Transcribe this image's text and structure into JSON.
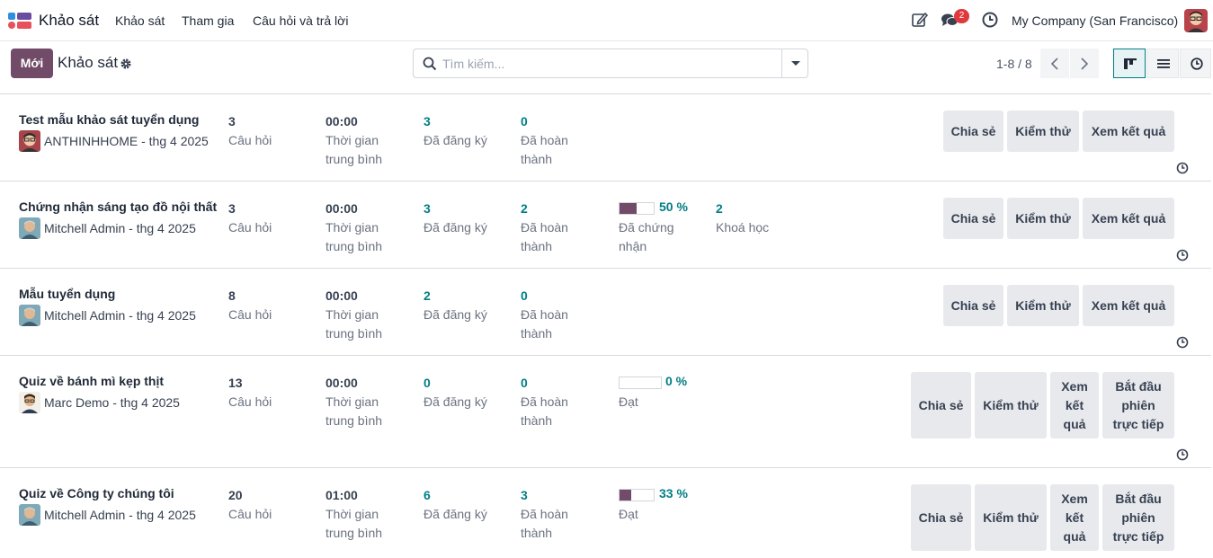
{
  "app": {
    "name": "Khảo sát"
  },
  "menu": [
    {
      "label": "Khảo sát"
    },
    {
      "label": "Tham gia"
    },
    {
      "label": "Câu hỏi và trả lời"
    }
  ],
  "navbar": {
    "messages_count": "2",
    "company": "My Company (San Francisco)"
  },
  "control": {
    "new_label": "Mới",
    "breadcrumb": "Khảo sát",
    "search_placeholder": "Tìm kiếm...",
    "pager": "1-8 / 8"
  },
  "colors": {
    "brand": "#714b67",
    "accent": "#017e84",
    "badge": "#e0383c",
    "button_bg": "#e7e9ed"
  },
  "cards": [
    {
      "title": "Test mẫu khảo sát tuyển dụng",
      "owner": "ANTHINHHOME - thg 4 2025",
      "questions": "3",
      "questions_label": "Câu hỏi",
      "avg_time": "00:00",
      "avg_time_label": "Thời gian trung bình",
      "registered": "3",
      "registered_label": "Đã đăng ký",
      "completed": "0",
      "completed_label": "Đã hoàn thành",
      "buttons": [
        "Chia sẻ",
        "Kiểm thử",
        "Xem kết quả"
      ]
    },
    {
      "title": "Chứng nhận sáng tạo đồ nội thất",
      "owner": "Mitchell Admin - thg 4 2025",
      "questions": "3",
      "questions_label": "Câu hỏi",
      "avg_time": "00:00",
      "avg_time_label": "Thời gian trung bình",
      "registered": "3",
      "registered_label": "Đã đăng ký",
      "completed": "2",
      "completed_label": "Đã hoàn thành",
      "progress_pct": "50 %",
      "progress_fraction": 0.5,
      "progress_label": "Đã chứng nhận",
      "courses": "2",
      "courses_label": "Khoá học",
      "buttons": [
        "Chia sẻ",
        "Kiểm thử",
        "Xem kết quả"
      ]
    },
    {
      "title": "Mẫu tuyển dụng",
      "owner": "Mitchell Admin - thg 4 2025",
      "questions": "8",
      "questions_label": "Câu hỏi",
      "avg_time": "00:00",
      "avg_time_label": "Thời gian trung bình",
      "registered": "2",
      "registered_label": "Đã đăng ký",
      "completed": "0",
      "completed_label": "Đã hoàn thành",
      "buttons": [
        "Chia sẻ",
        "Kiểm thử",
        "Xem kết quả"
      ]
    },
    {
      "title": "Quiz về bánh mì kẹp thịt",
      "owner": "Marc Demo - thg 4 2025",
      "questions": "13",
      "questions_label": "Câu hỏi",
      "avg_time": "00:00",
      "avg_time_label": "Thời gian trung bình",
      "registered": "0",
      "registered_label": "Đã đăng ký",
      "completed": "0",
      "completed_label": "Đã hoàn thành",
      "progress_pct": "0 %",
      "progress_fraction": 0.0,
      "progress_label": "Đạt",
      "buttons": [
        "Chia sẻ",
        "Kiểm thử",
        "Xem kết quả",
        "Bắt đầu phiên trực tiếp"
      ]
    },
    {
      "title": "Quiz về Công ty chúng tôi",
      "owner": "Mitchell Admin - thg 4 2025",
      "questions": "20",
      "questions_label": "Câu hỏi",
      "avg_time": "01:00",
      "avg_time_label": "Thời gian trung bình",
      "registered": "6",
      "registered_label": "Đã đăng ký",
      "completed": "3",
      "completed_label": "Đã hoàn thành",
      "progress_pct": "33 %",
      "progress_fraction": 0.33,
      "progress_label": "Đạt",
      "buttons": [
        "Chia sẻ",
        "Kiểm thử",
        "Xem kết quả",
        "Bắt đầu phiên trực tiếp"
      ]
    }
  ]
}
